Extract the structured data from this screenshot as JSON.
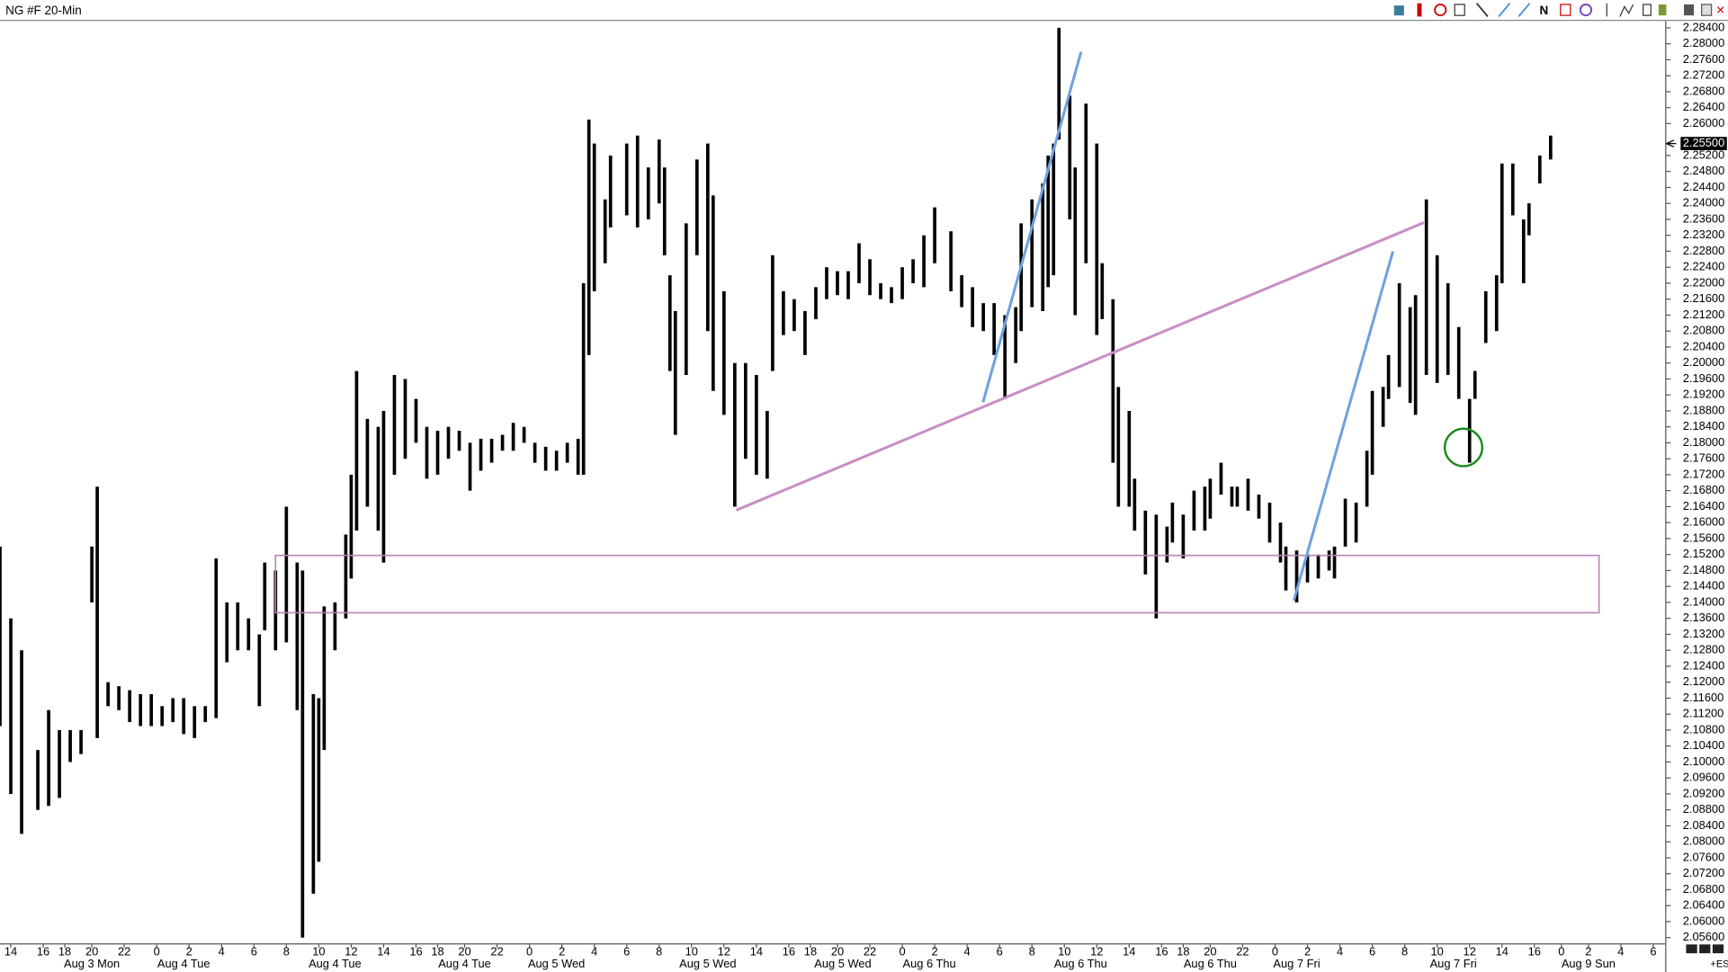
{
  "chart_data": {
    "type": "ohlc",
    "title": "NG #F 20-Min",
    "x": [
      0,
      2,
      4,
      7,
      9,
      11,
      13,
      15,
      17,
      18,
      20,
      22,
      24,
      26,
      28,
      30,
      32,
      34,
      36,
      38,
      40,
      42,
      44,
      46,
      48,
      49,
      51,
      53,
      55,
      56,
      58,
      59,
      60,
      62,
      64,
      65,
      66,
      68,
      70,
      71,
      73,
      75,
      77,
      79,
      81,
      83,
      85,
      87,
      89,
      91,
      93,
      95,
      97,
      99,
      101,
      103,
      105,
      107,
      108,
      109,
      110,
      112,
      113,
      116,
      118,
      120,
      122,
      123,
      124,
      125,
      127,
      129,
      131,
      132,
      134,
      136,
      138,
      140,
      142,
      143,
      145,
      147,
      149,
      151,
      153,
      155,
      157,
      159,
      161,
      163,
      165,
      167,
      169,
      171,
      173,
      176,
      178,
      180,
      182,
      184,
      186,
      188,
      189,
      191,
      193,
      194,
      195,
      196,
      198,
      199,
      201,
      203,
      204,
      206,
      207,
      209,
      210,
      212,
      214,
      216,
      217,
      219,
      221,
      223,
      224,
      226,
      228,
      229,
      231,
      233,
      235,
      237,
      238,
      240,
      242,
      244,
      246,
      247,
      249,
      251,
      253,
      254,
      256,
      257,
      259,
      261,
      262,
      264,
      266,
      268,
      270,
      272,
      273,
      275,
      277,
      278,
      280,
      282,
      283,
      285,
      287
    ],
    "high": [
      2.154,
      2.136,
      2.128,
      2.103,
      2.113,
      2.108,
      2.108,
      2.108,
      2.154,
      2.169,
      2.12,
      2.119,
      2.118,
      2.117,
      2.117,
      2.114,
      2.116,
      2.116,
      2.114,
      2.114,
      2.151,
      2.14,
      2.14,
      2.136,
      2.132,
      2.15,
      2.148,
      2.164,
      2.15,
      2.148,
      2.117,
      2.116,
      2.139,
      2.14,
      2.157,
      2.172,
      2.198,
      2.186,
      2.184,
      2.188,
      2.197,
      2.196,
      2.191,
      2.184,
      2.183,
      2.184,
      2.183,
      2.18,
      2.181,
      2.181,
      2.182,
      2.185,
      2.184,
      2.18,
      2.179,
      2.178,
      2.18,
      2.181,
      2.22,
      2.261,
      2.255,
      2.241,
      2.252,
      2.255,
      2.257,
      2.249,
      2.256,
      2.249,
      2.222,
      2.213,
      2.235,
      2.251,
      2.255,
      2.242,
      2.218,
      2.2,
      2.2,
      2.197,
      2.188,
      2.227,
      2.218,
      2.216,
      2.213,
      2.219,
      2.224,
      2.223,
      2.223,
      2.23,
      2.226,
      2.22,
      2.219,
      2.224,
      2.226,
      2.232,
      2.239,
      2.233,
      2.222,
      2.219,
      2.215,
      2.215,
      2.212,
      2.214,
      2.235,
      2.241,
      2.245,
      2.252,
      2.255,
      2.284,
      2.267,
      2.249,
      2.265,
      2.255,
      2.225,
      2.216,
      2.194,
      2.188,
      2.171,
      2.163,
      2.162,
      2.159,
      2.165,
      2.162,
      2.168,
      2.169,
      2.171,
      2.175,
      2.169,
      2.169,
      2.171,
      2.167,
      2.165,
      2.16,
      2.154,
      2.153,
      2.152,
      2.152,
      2.153,
      2.154,
      2.166,
      2.165,
      2.178,
      2.193,
      2.194,
      2.202,
      2.22,
      2.214,
      2.217,
      2.241,
      2.227,
      2.22,
      2.209,
      2.191,
      2.198,
      2.218,
      2.222,
      2.25,
      2.25,
      2.236,
      2.24,
      2.252,
      2.257
    ],
    "low": [
      2.109,
      2.092,
      2.082,
      2.088,
      2.089,
      2.091,
      2.1,
      2.102,
      2.14,
      2.106,
      2.114,
      2.113,
      2.11,
      2.109,
      2.109,
      2.109,
      2.11,
      2.107,
      2.106,
      2.11,
      2.111,
      2.125,
      2.128,
      2.128,
      2.114,
      2.133,
      2.128,
      2.13,
      2.113,
      2.056,
      2.067,
      2.075,
      2.103,
      2.128,
      2.136,
      2.146,
      2.158,
      2.164,
      2.158,
      2.15,
      2.172,
      2.176,
      2.18,
      2.171,
      2.172,
      2.176,
      2.178,
      2.168,
      2.173,
      2.175,
      2.178,
      2.178,
      2.18,
      2.175,
      2.173,
      2.173,
      2.175,
      2.172,
      2.172,
      2.202,
      2.218,
      2.225,
      2.234,
      2.237,
      2.234,
      2.236,
      2.24,
      2.227,
      2.198,
      2.182,
      2.197,
      2.227,
      2.208,
      2.193,
      2.187,
      2.164,
      2.176,
      2.172,
      2.171,
      2.198,
      2.207,
      2.208,
      2.202,
      2.211,
      2.216,
      2.217,
      2.216,
      2.22,
      2.217,
      2.216,
      2.215,
      2.216,
      2.22,
      2.219,
      2.225,
      2.218,
      2.214,
      2.209,
      2.208,
      2.202,
      2.191,
      2.2,
      2.208,
      2.214,
      2.213,
      2.219,
      2.222,
      2.256,
      2.236,
      2.212,
      2.225,
      2.207,
      2.211,
      2.175,
      2.164,
      2.164,
      2.158,
      2.147,
      2.136,
      2.15,
      2.155,
      2.151,
      2.158,
      2.158,
      2.161,
      2.167,
      2.164,
      2.164,
      2.163,
      2.161,
      2.155,
      2.15,
      2.143,
      2.14,
      2.145,
      2.146,
      2.148,
      2.146,
      2.154,
      2.155,
      2.164,
      2.172,
      2.184,
      2.191,
      2.194,
      2.19,
      2.187,
      2.197,
      2.195,
      2.197,
      2.191,
      2.175,
      2.191,
      2.205,
      2.208,
      2.22,
      2.237,
      2.22,
      2.232,
      2.245,
      2.251
    ],
    "color": "#000000",
    "ylim": [
      2.054,
      2.286
    ],
    "yticks": [
      {
        "value": 2.284,
        "label": "2.28400"
      },
      {
        "value": 2.28,
        "label": "2.28000"
      },
      {
        "value": 2.276,
        "label": "2.27600"
      },
      {
        "value": 2.272,
        "label": "2.27200"
      },
      {
        "value": 2.268,
        "label": "2.26800"
      },
      {
        "value": 2.264,
        "label": "2.26400"
      },
      {
        "value": 2.26,
        "label": "2.26000"
      },
      {
        "value": 2.252,
        "label": "2.25200"
      },
      {
        "value": 2.248,
        "label": "2.24800"
      },
      {
        "value": 2.244,
        "label": "2.24400"
      },
      {
        "value": 2.24,
        "label": "2.24000"
      },
      {
        "value": 2.236,
        "label": "2.23600"
      },
      {
        "value": 2.232,
        "label": "2.23200"
      },
      {
        "value": 2.228,
        "label": "2.22800"
      },
      {
        "value": 2.224,
        "label": "2.22400"
      },
      {
        "value": 2.22,
        "label": "2.22000"
      },
      {
        "value": 2.216,
        "label": "2.21600"
      },
      {
        "value": 2.212,
        "label": "2.21200"
      },
      {
        "value": 2.208,
        "label": "2.20800"
      },
      {
        "value": 2.204,
        "label": "2.20400"
      },
      {
        "value": 2.2,
        "label": "2.20000"
      },
      {
        "value": 2.196,
        "label": "2.19600"
      },
      {
        "value": 2.192,
        "label": "2.19200"
      },
      {
        "value": 2.188,
        "label": "2.18800"
      },
      {
        "value": 2.184,
        "label": "2.18400"
      },
      {
        "value": 2.18,
        "label": "2.18000"
      },
      {
        "value": 2.176,
        "label": "2.17600"
      },
      {
        "value": 2.172,
        "label": "2.17200"
      },
      {
        "value": 2.168,
        "label": "2.16800"
      },
      {
        "value": 2.164,
        "label": "2.16400"
      },
      {
        "value": 2.16,
        "label": "2.16000"
      },
      {
        "value": 2.156,
        "label": "2.15600"
      },
      {
        "value": 2.152,
        "label": "2.15200"
      },
      {
        "value": 2.148,
        "label": "2.14800"
      },
      {
        "value": 2.144,
        "label": "2.14400"
      },
      {
        "value": 2.14,
        "label": "2.14000"
      },
      {
        "value": 2.136,
        "label": "2.13600"
      },
      {
        "value": 2.132,
        "label": "2.13200"
      },
      {
        "value": 2.128,
        "label": "2.12800"
      },
      {
        "value": 2.124,
        "label": "2.12400"
      },
      {
        "value": 2.12,
        "label": "2.12000"
      },
      {
        "value": 2.116,
        "label": "2.11600"
      },
      {
        "value": 2.112,
        "label": "2.11200"
      },
      {
        "value": 2.108,
        "label": "2.10800"
      },
      {
        "value": 2.104,
        "label": "2.10400"
      },
      {
        "value": 2.1,
        "label": "2.10000"
      },
      {
        "value": 2.096,
        "label": "2.09600"
      },
      {
        "value": 2.092,
        "label": "2.09200"
      },
      {
        "value": 2.088,
        "label": "2.08800"
      },
      {
        "value": 2.084,
        "label": "2.08400"
      },
      {
        "value": 2.08,
        "label": "2.08000"
      },
      {
        "value": 2.076,
        "label": "2.07600"
      },
      {
        "value": 2.072,
        "label": "2.07200"
      },
      {
        "value": 2.068,
        "label": "2.06800"
      },
      {
        "value": 2.064,
        "label": "2.06400"
      },
      {
        "value": 2.06,
        "label": "2.06000"
      },
      {
        "value": 2.056,
        "label": "2.05600"
      }
    ],
    "last_price": {
      "value": 2.255,
      "label": "2.25500"
    },
    "xlim": [
      0,
      308
    ],
    "xticks": [
      {
        "value": 2,
        "label": "14"
      },
      {
        "value": 8,
        "label": "16"
      },
      {
        "value": 12,
        "label": "18"
      },
      {
        "value": 17,
        "label": "20"
      },
      {
        "value": 23,
        "label": "22"
      },
      {
        "value": 29,
        "label": "0"
      },
      {
        "value": 35,
        "label": "2"
      },
      {
        "value": 41,
        "label": "4"
      },
      {
        "value": 47,
        "label": "6"
      },
      {
        "value": 53,
        "label": "8"
      },
      {
        "value": 59,
        "label": "10"
      },
      {
        "value": 65,
        "label": "12"
      },
      {
        "value": 71,
        "label": "14"
      },
      {
        "value": 77,
        "label": "16"
      },
      {
        "value": 81,
        "label": "18"
      },
      {
        "value": 86,
        "label": "20"
      },
      {
        "value": 92,
        "label": "22"
      },
      {
        "value": 98,
        "label": "0"
      },
      {
        "value": 104,
        "label": "2"
      },
      {
        "value": 110,
        "label": "4"
      },
      {
        "value": 116,
        "label": "6"
      },
      {
        "value": 122,
        "label": "8"
      },
      {
        "value": 128,
        "label": "10"
      },
      {
        "value": 134,
        "label": "12"
      },
      {
        "value": 140,
        "label": "14"
      },
      {
        "value": 146,
        "label": "16"
      },
      {
        "value": 150,
        "label": "18"
      },
      {
        "value": 155,
        "label": "20"
      },
      {
        "value": 161,
        "label": "22"
      },
      {
        "value": 167,
        "label": "0"
      },
      {
        "value": 173,
        "label": "2"
      },
      {
        "value": 179,
        "label": "4"
      },
      {
        "value": 185,
        "label": "6"
      },
      {
        "value": 191,
        "label": "8"
      },
      {
        "value": 197,
        "label": "10"
      },
      {
        "value": 203,
        "label": "12"
      },
      {
        "value": 209,
        "label": "14"
      },
      {
        "value": 215,
        "label": "16"
      },
      {
        "value": 219,
        "label": "18"
      },
      {
        "value": 224,
        "label": "20"
      },
      {
        "value": 230,
        "label": "22"
      },
      {
        "value": 236,
        "label": "0"
      },
      {
        "value": 242,
        "label": "2"
      },
      {
        "value": 248,
        "label": "4"
      },
      {
        "value": 254,
        "label": "6"
      },
      {
        "value": 260,
        "label": "8"
      },
      {
        "value": 266,
        "label": "10"
      },
      {
        "value": 272,
        "label": "12"
      },
      {
        "value": 278,
        "label": "14"
      },
      {
        "value": 284,
        "label": "16"
      },
      {
        "value": 289,
        "label": "0"
      },
      {
        "value": 294,
        "label": "2"
      },
      {
        "value": 300,
        "label": "4"
      },
      {
        "value": 306,
        "label": "6"
      }
    ],
    "date_labels": [
      {
        "value": 17,
        "label": "Aug 3 Mon"
      },
      {
        "value": 34,
        "label": "Aug 4 Tue"
      },
      {
        "value": 62,
        "label": "Aug 4 Tue"
      },
      {
        "value": 86,
        "label": "Aug 4 Tue"
      },
      {
        "value": 103,
        "label": "Aug 5 Wed"
      },
      {
        "value": 131,
        "label": "Aug 5 Wed"
      },
      {
        "value": 156,
        "label": "Aug 5 Wed"
      },
      {
        "value": 172,
        "label": "Aug 6 Thu"
      },
      {
        "value": 200,
        "label": "Aug 6 Thu"
      },
      {
        "value": 224,
        "label": "Aug 6 Thu"
      },
      {
        "value": 240,
        "label": "Aug 7 Fri"
      },
      {
        "value": 269,
        "label": "Aug 7 Fri"
      },
      {
        "value": 294,
        "label": "Aug 9 Sun"
      }
    ],
    "corner_label": "+ES"
  }
}
